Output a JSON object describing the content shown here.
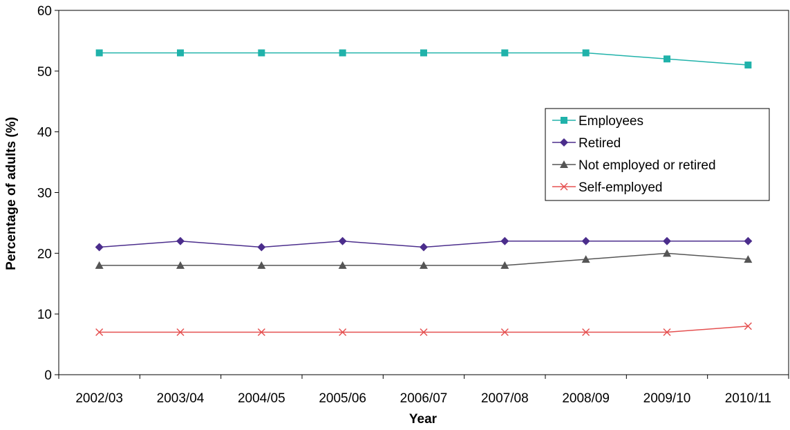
{
  "chart_data": {
    "type": "line",
    "title": "",
    "xlabel": "Year",
    "ylabel": "Percentage of adults (%)",
    "ylim": [
      0,
      60
    ],
    "yticks": [
      0,
      10,
      20,
      30,
      40,
      50,
      60
    ],
    "grid": false,
    "legend_position": "right",
    "categories": [
      "2002/03",
      "2003/04",
      "2004/05",
      "2005/06",
      "2006/07",
      "2007/08",
      "2008/09",
      "2009/10",
      "2010/11"
    ],
    "series": [
      {
        "name": "Employees",
        "color": "#20b2aa",
        "marker": "square",
        "values": [
          53,
          53,
          53,
          53,
          53,
          53,
          53,
          52,
          51
        ]
      },
      {
        "name": "Retired",
        "color": "#4b2d8c",
        "marker": "diamond",
        "values": [
          21,
          22,
          21,
          22,
          21,
          22,
          22,
          22,
          22
        ]
      },
      {
        "name": "Not employed or retired",
        "color": "#555555",
        "marker": "triangle",
        "values": [
          18,
          18,
          18,
          18,
          18,
          18,
          19,
          20,
          19
        ]
      },
      {
        "name": "Self-employed",
        "color": "#e55050",
        "marker": "x",
        "values": [
          7,
          7,
          7,
          7,
          7,
          7,
          7,
          7,
          8
        ]
      }
    ]
  }
}
